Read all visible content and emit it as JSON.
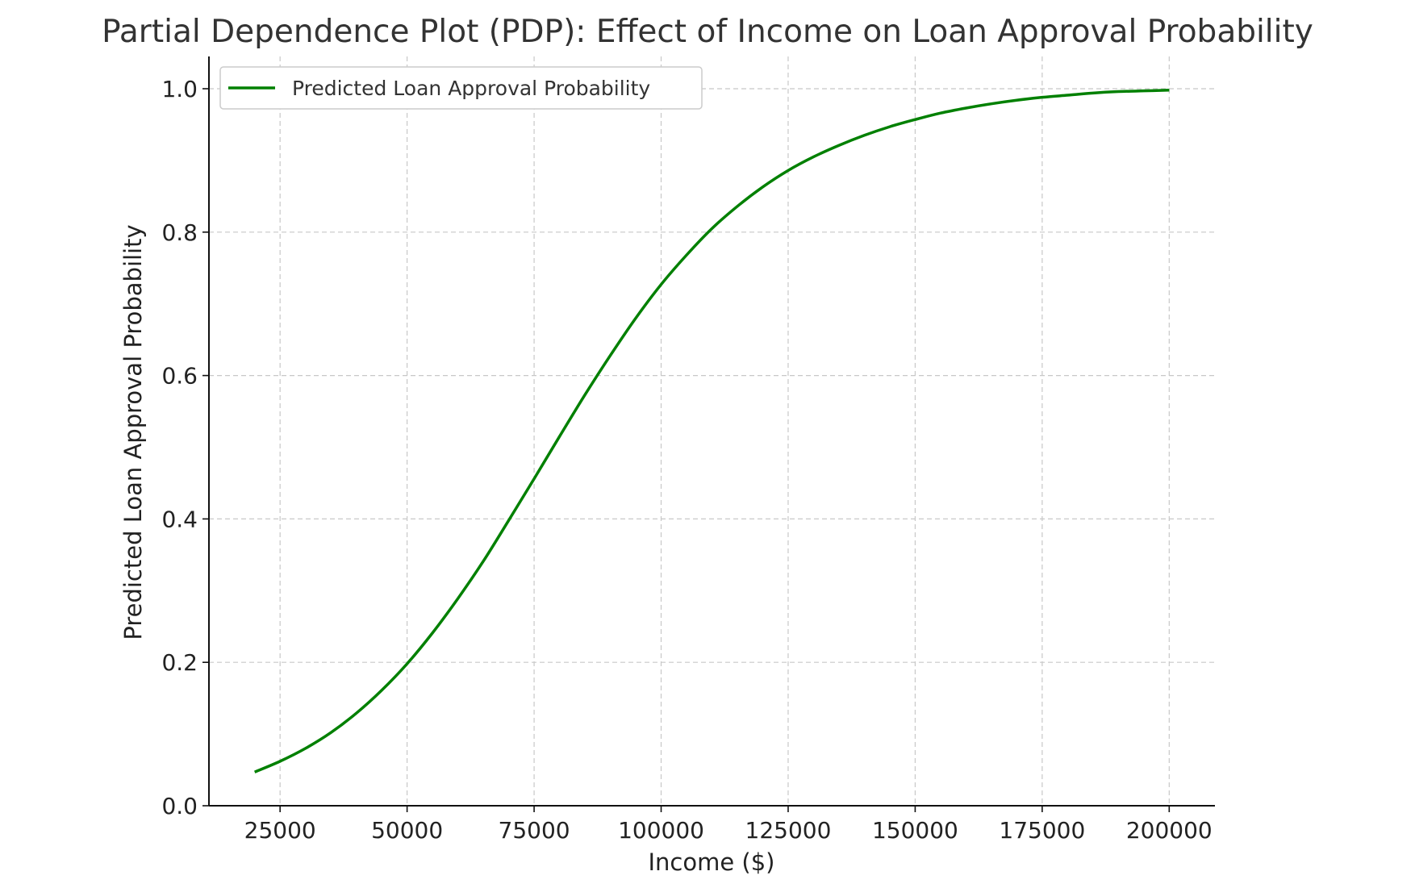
{
  "chart_data": {
    "type": "line",
    "title": "Partial Dependence Plot (PDP): Effect of Income on Loan Approval Probability",
    "xlabel": "Income ($)",
    "ylabel": "Predicted Loan Approval Probability",
    "xlim": [
      11000,
      209000
    ],
    "ylim": [
      0.0,
      1.045
    ],
    "xticks": [
      25000,
      50000,
      75000,
      100000,
      125000,
      150000,
      175000,
      200000
    ],
    "xtick_labels": [
      "25000",
      "50000",
      "75000",
      "100000",
      "125000",
      "150000",
      "175000",
      "200000"
    ],
    "yticks": [
      0.0,
      0.2,
      0.4,
      0.6,
      0.8,
      1.0
    ],
    "ytick_labels": [
      "0.0",
      "0.2",
      "0.4",
      "0.6",
      "0.8",
      "1.0"
    ],
    "grid": true,
    "legend_position": "top-left",
    "series": [
      {
        "name": "Predicted Loan Approval Probability",
        "color": "#008000",
        "x": [
          20000,
          25000,
          30000,
          35000,
          40000,
          45000,
          50000,
          55000,
          60000,
          65000,
          70000,
          75000,
          80000,
          85000,
          90000,
          95000,
          100000,
          105000,
          110000,
          115000,
          120000,
          125000,
          130000,
          135000,
          140000,
          145000,
          150000,
          155000,
          160000,
          165000,
          170000,
          175000,
          180000,
          185000,
          190000,
          195000,
          200000
        ],
        "y": [
          0.047,
          0.062,
          0.08,
          0.102,
          0.129,
          0.161,
          0.198,
          0.241,
          0.289,
          0.341,
          0.398,
          0.456,
          0.515,
          0.573,
          0.628,
          0.68,
          0.727,
          0.768,
          0.805,
          0.836,
          0.863,
          0.886,
          0.905,
          0.921,
          0.935,
          0.947,
          0.957,
          0.966,
          0.973,
          0.979,
          0.984,
          0.988,
          0.991,
          0.994,
          0.996,
          0.997,
          0.998
        ]
      }
    ]
  }
}
